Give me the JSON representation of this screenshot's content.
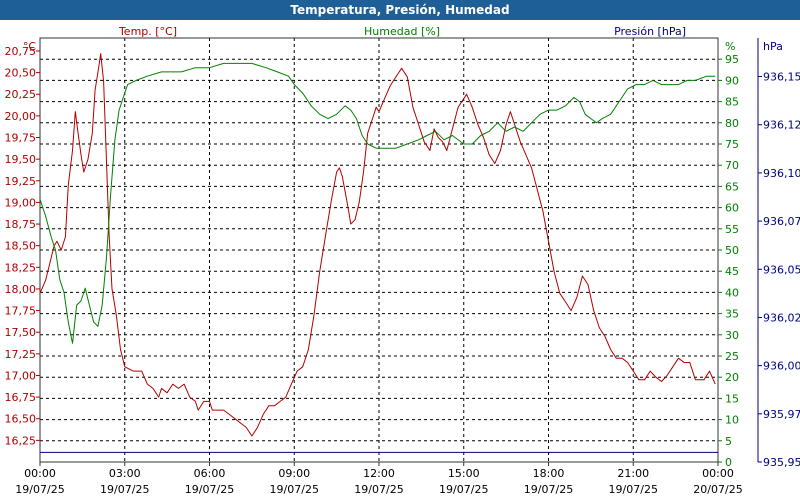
{
  "header": {
    "title": "Temperatura, Presión, Humedad"
  },
  "chart_data": {
    "type": "line",
    "title": "Temperatura, Presión, Humedad",
    "colors": {
      "temperature": "#b00000",
      "humidity": "#008000",
      "pressure": "#000080",
      "title_bg": "#1d5f96"
    },
    "axes": {
      "temperature": {
        "name": "Temp. [°C]",
        "unit": "°C",
        "side": "left",
        "ylim": [
          16.0,
          20.9
        ],
        "ticks": [
          "16,25",
          "16,50",
          "16,75",
          "17,00",
          "17,25",
          "17,50",
          "17,75",
          "18,00",
          "18,25",
          "18,50",
          "18,75",
          "19,00",
          "19,25",
          "19,50",
          "19,75",
          "20,00",
          "20,25",
          "20,50",
          "20,75"
        ],
        "tick_values": [
          16.25,
          16.5,
          16.75,
          17.0,
          17.25,
          17.5,
          17.75,
          18.0,
          18.25,
          18.5,
          18.75,
          19.0,
          19.25,
          19.5,
          19.75,
          20.0,
          20.25,
          20.5,
          20.75
        ]
      },
      "humidity": {
        "name": "Humedad [%]",
        "unit": "%",
        "side": "right-inner",
        "ylim": [
          0,
          100
        ],
        "ticks": [
          "0",
          "5",
          "10",
          "15",
          "20",
          "25",
          "30",
          "35",
          "40",
          "45",
          "50",
          "55",
          "60",
          "65",
          "70",
          "75",
          "80",
          "85",
          "90",
          "95"
        ],
        "tick_values": [
          0,
          5,
          10,
          15,
          20,
          25,
          30,
          35,
          40,
          45,
          50,
          55,
          60,
          65,
          70,
          75,
          80,
          85,
          90,
          95
        ]
      },
      "pressure": {
        "name": "Presión [hPa]",
        "unit": "hPa",
        "side": "right-outer",
        "ylim": [
          935.95,
          936.17
        ],
        "ticks": [
          "935,95",
          "935,97",
          "936,00",
          "936,02",
          "936,05",
          "936,07",
          "936,10",
          "936,12",
          "936,15"
        ],
        "tick_values": [
          935.95,
          935.975,
          936.0,
          936.025,
          936.05,
          936.075,
          936.1,
          936.125,
          936.15
        ]
      }
    },
    "x_ticks": [
      {
        "h": 0,
        "time": "00:00",
        "date": "19/07/25"
      },
      {
        "h": 3,
        "time": "03:00",
        "date": "19/07/25"
      },
      {
        "h": 6,
        "time": "06:00",
        "date": "19/07/25"
      },
      {
        "h": 9,
        "time": "09:00",
        "date": "19/07/25"
      },
      {
        "h": 12,
        "time": "12:00",
        "date": "19/07/25"
      },
      {
        "h": 15,
        "time": "15:00",
        "date": "19/07/25"
      },
      {
        "h": 18,
        "time": "18:00",
        "date": "19/07/25"
      },
      {
        "h": 21,
        "time": "21:00",
        "date": "19/07/25"
      },
      {
        "h": 24,
        "time": "00:00",
        "date": "20/07/25"
      }
    ],
    "xlim": [
      0,
      24
    ],
    "grid": true,
    "series": [
      {
        "name": "Temp. [°C]",
        "axis": "temperature",
        "color": "#b00000",
        "points": [
          [
            0,
            17.95
          ],
          [
            0.2,
            18.1
          ],
          [
            0.35,
            18.3
          ],
          [
            0.5,
            18.5
          ],
          [
            0.6,
            18.55
          ],
          [
            0.75,
            18.45
          ],
          [
            0.9,
            18.6
          ],
          [
            1.0,
            19.2
          ],
          [
            1.15,
            19.6
          ],
          [
            1.25,
            20.05
          ],
          [
            1.35,
            19.8
          ],
          [
            1.45,
            19.55
          ],
          [
            1.55,
            19.35
          ],
          [
            1.7,
            19.5
          ],
          [
            1.85,
            19.8
          ],
          [
            1.95,
            20.3
          ],
          [
            2.05,
            20.5
          ],
          [
            2.15,
            20.72
          ],
          [
            2.25,
            20.4
          ],
          [
            2.35,
            19.5
          ],
          [
            2.45,
            18.6
          ],
          [
            2.55,
            18.0
          ],
          [
            2.7,
            17.7
          ],
          [
            2.85,
            17.3
          ],
          [
            3.0,
            17.1
          ],
          [
            3.3,
            17.05
          ],
          [
            3.6,
            17.05
          ],
          [
            3.8,
            16.9
          ],
          [
            4.0,
            16.85
          ],
          [
            4.2,
            16.75
          ],
          [
            4.3,
            16.85
          ],
          [
            4.5,
            16.8
          ],
          [
            4.7,
            16.9
          ],
          [
            4.9,
            16.85
          ],
          [
            5.1,
            16.9
          ],
          [
            5.3,
            16.75
          ],
          [
            5.5,
            16.7
          ],
          [
            5.6,
            16.6
          ],
          [
            5.8,
            16.7
          ],
          [
            6.0,
            16.7
          ],
          [
            6.1,
            16.6
          ],
          [
            6.3,
            16.6
          ],
          [
            6.5,
            16.6
          ],
          [
            6.7,
            16.55
          ],
          [
            6.9,
            16.5
          ],
          [
            7.1,
            16.45
          ],
          [
            7.3,
            16.4
          ],
          [
            7.5,
            16.3
          ],
          [
            7.7,
            16.4
          ],
          [
            7.9,
            16.55
          ],
          [
            8.1,
            16.65
          ],
          [
            8.3,
            16.65
          ],
          [
            8.5,
            16.7
          ],
          [
            8.7,
            16.75
          ],
          [
            8.9,
            16.9
          ],
          [
            9.1,
            17.05
          ],
          [
            9.3,
            17.1
          ],
          [
            9.5,
            17.3
          ],
          [
            9.7,
            17.7
          ],
          [
            9.9,
            18.2
          ],
          [
            10.1,
            18.6
          ],
          [
            10.3,
            19.0
          ],
          [
            10.5,
            19.35
          ],
          [
            10.6,
            19.4
          ],
          [
            10.7,
            19.3
          ],
          [
            10.9,
            18.95
          ],
          [
            11.0,
            18.75
          ],
          [
            11.15,
            18.8
          ],
          [
            11.3,
            19.0
          ],
          [
            11.45,
            19.35
          ],
          [
            11.6,
            19.8
          ],
          [
            11.8,
            20.0
          ],
          [
            11.9,
            20.1
          ],
          [
            12.0,
            20.05
          ],
          [
            12.2,
            20.2
          ],
          [
            12.4,
            20.35
          ],
          [
            12.6,
            20.45
          ],
          [
            12.8,
            20.55
          ],
          [
            13.0,
            20.45
          ],
          [
            13.2,
            20.1
          ],
          [
            13.4,
            19.9
          ],
          [
            13.6,
            19.7
          ],
          [
            13.8,
            19.6
          ],
          [
            13.95,
            19.85
          ],
          [
            14.1,
            19.75
          ],
          [
            14.25,
            19.7
          ],
          [
            14.4,
            19.6
          ],
          [
            14.6,
            19.85
          ],
          [
            14.8,
            20.1
          ],
          [
            15.0,
            20.2
          ],
          [
            15.1,
            20.25
          ],
          [
            15.3,
            20.1
          ],
          [
            15.5,
            19.9
          ],
          [
            15.7,
            19.75
          ],
          [
            15.9,
            19.55
          ],
          [
            16.1,
            19.45
          ],
          [
            16.3,
            19.6
          ],
          [
            16.5,
            19.9
          ],
          [
            16.65,
            20.05
          ],
          [
            16.8,
            19.9
          ],
          [
            17.0,
            19.7
          ],
          [
            17.2,
            19.55
          ],
          [
            17.4,
            19.4
          ],
          [
            17.6,
            19.15
          ],
          [
            17.8,
            18.9
          ],
          [
            18.0,
            18.55
          ],
          [
            18.2,
            18.2
          ],
          [
            18.4,
            17.95
          ],
          [
            18.6,
            17.85
          ],
          [
            18.8,
            17.75
          ],
          [
            19.0,
            17.9
          ],
          [
            19.2,
            18.15
          ],
          [
            19.4,
            18.05
          ],
          [
            19.6,
            17.75
          ],
          [
            19.8,
            17.55
          ],
          [
            20.0,
            17.45
          ],
          [
            20.2,
            17.3
          ],
          [
            20.4,
            17.2
          ],
          [
            20.6,
            17.2
          ],
          [
            20.8,
            17.15
          ],
          [
            21.0,
            17.05
          ],
          [
            21.2,
            16.95
          ],
          [
            21.4,
            16.95
          ],
          [
            21.6,
            17.05
          ],
          [
            21.8,
            16.98
          ],
          [
            22.0,
            16.93
          ],
          [
            22.2,
            17.0
          ],
          [
            22.4,
            17.1
          ],
          [
            22.6,
            17.2
          ],
          [
            22.8,
            17.15
          ],
          [
            23.0,
            17.15
          ],
          [
            23.2,
            16.95
          ],
          [
            23.5,
            16.95
          ],
          [
            23.7,
            17.05
          ],
          [
            23.9,
            16.9
          ]
        ]
      },
      {
        "name": "Humedad [%]",
        "axis": "humidity",
        "color": "#008000",
        "points": [
          [
            0,
            62
          ],
          [
            0.2,
            58
          ],
          [
            0.4,
            53
          ],
          [
            0.55,
            50
          ],
          [
            0.7,
            43
          ],
          [
            0.85,
            40
          ],
          [
            1.0,
            33
          ],
          [
            1.15,
            28
          ],
          [
            1.3,
            37
          ],
          [
            1.45,
            38
          ],
          [
            1.6,
            41
          ],
          [
            1.75,
            37
          ],
          [
            1.9,
            33
          ],
          [
            2.05,
            32
          ],
          [
            2.2,
            37
          ],
          [
            2.35,
            48
          ],
          [
            2.5,
            63
          ],
          [
            2.65,
            76
          ],
          [
            2.8,
            83
          ],
          [
            2.95,
            86
          ],
          [
            3.1,
            89
          ],
          [
            3.4,
            90
          ],
          [
            3.8,
            91
          ],
          [
            4.3,
            92
          ],
          [
            5.0,
            92
          ],
          [
            5.5,
            93
          ],
          [
            6.0,
            93
          ],
          [
            6.5,
            94
          ],
          [
            7.0,
            94
          ],
          [
            7.5,
            94
          ],
          [
            8.0,
            93
          ],
          [
            8.4,
            92
          ],
          [
            8.8,
            91
          ],
          [
            9.0,
            89
          ],
          [
            9.3,
            87
          ],
          [
            9.6,
            84
          ],
          [
            9.9,
            82
          ],
          [
            10.2,
            81
          ],
          [
            10.5,
            82
          ],
          [
            10.8,
            84
          ],
          [
            11.0,
            83
          ],
          [
            11.2,
            81
          ],
          [
            11.4,
            77
          ],
          [
            11.6,
            75
          ],
          [
            11.9,
            74
          ],
          [
            12.2,
            74
          ],
          [
            12.6,
            74
          ],
          [
            13.0,
            75
          ],
          [
            13.4,
            76
          ],
          [
            13.7,
            77
          ],
          [
            14.0,
            78
          ],
          [
            14.3,
            76
          ],
          [
            14.6,
            77
          ],
          [
            15.0,
            75
          ],
          [
            15.3,
            75
          ],
          [
            15.6,
            77
          ],
          [
            15.9,
            78
          ],
          [
            16.2,
            80
          ],
          [
            16.5,
            78
          ],
          [
            16.8,
            79
          ],
          [
            17.1,
            78
          ],
          [
            17.4,
            80
          ],
          [
            17.7,
            82
          ],
          [
            18.0,
            83
          ],
          [
            18.3,
            83
          ],
          [
            18.6,
            84
          ],
          [
            18.9,
            86
          ],
          [
            19.1,
            85
          ],
          [
            19.3,
            82
          ],
          [
            19.5,
            81
          ],
          [
            19.7,
            80
          ],
          [
            19.9,
            81
          ],
          [
            20.2,
            82
          ],
          [
            20.5,
            85
          ],
          [
            20.8,
            88
          ],
          [
            21.1,
            89
          ],
          [
            21.4,
            89
          ],
          [
            21.7,
            90
          ],
          [
            22.0,
            89
          ],
          [
            22.3,
            89
          ],
          [
            22.6,
            89
          ],
          [
            22.9,
            90
          ],
          [
            23.2,
            90
          ],
          [
            23.6,
            91
          ],
          [
            23.9,
            91
          ]
        ]
      },
      {
        "name": "Presión [hPa]",
        "axis": "pressure",
        "color": "#000080",
        "points": [
          [
            0,
            935.955
          ],
          [
            24,
            935.955
          ]
        ]
      }
    ]
  }
}
